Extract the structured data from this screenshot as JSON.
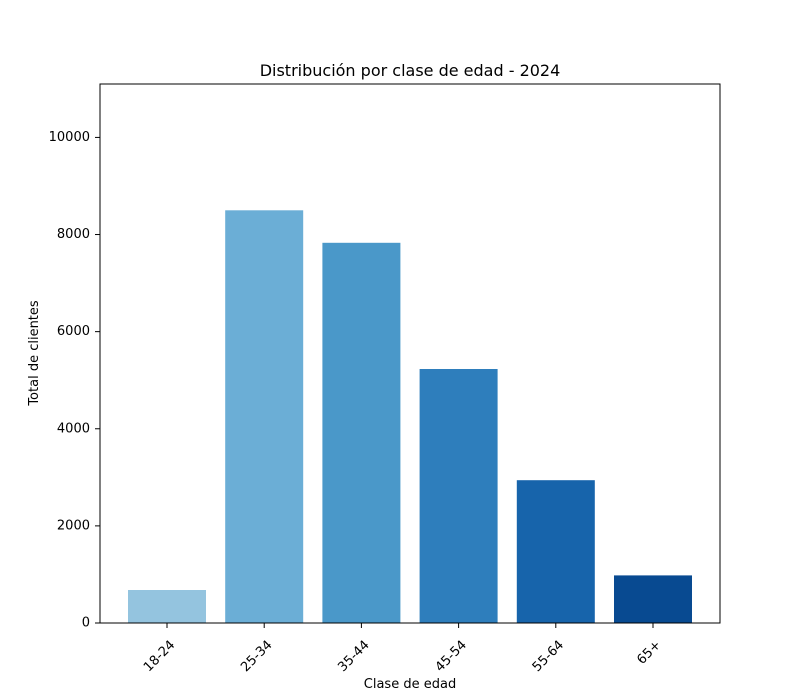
{
  "chart_data": {
    "type": "bar",
    "title": "Distribución por clase de edad - 2024",
    "xlabel": "Clase de edad",
    "ylabel": "Total de clientes",
    "categories": [
      "18-24",
      "25-34",
      "35-44",
      "45-54",
      "55-64",
      "65+"
    ],
    "values": [
      680,
      8500,
      7830,
      5230,
      2940,
      980
    ],
    "colors": [
      "#94c4df",
      "#6baed6",
      "#4a98c9",
      "#2e7ebc",
      "#1764ab",
      "#084a91"
    ],
    "ylim": [
      0,
      11100
    ],
    "yticks": [
      "0",
      "2000",
      "4000",
      "6000",
      "8000",
      "10000"
    ],
    "grid": false,
    "legend": "none"
  }
}
